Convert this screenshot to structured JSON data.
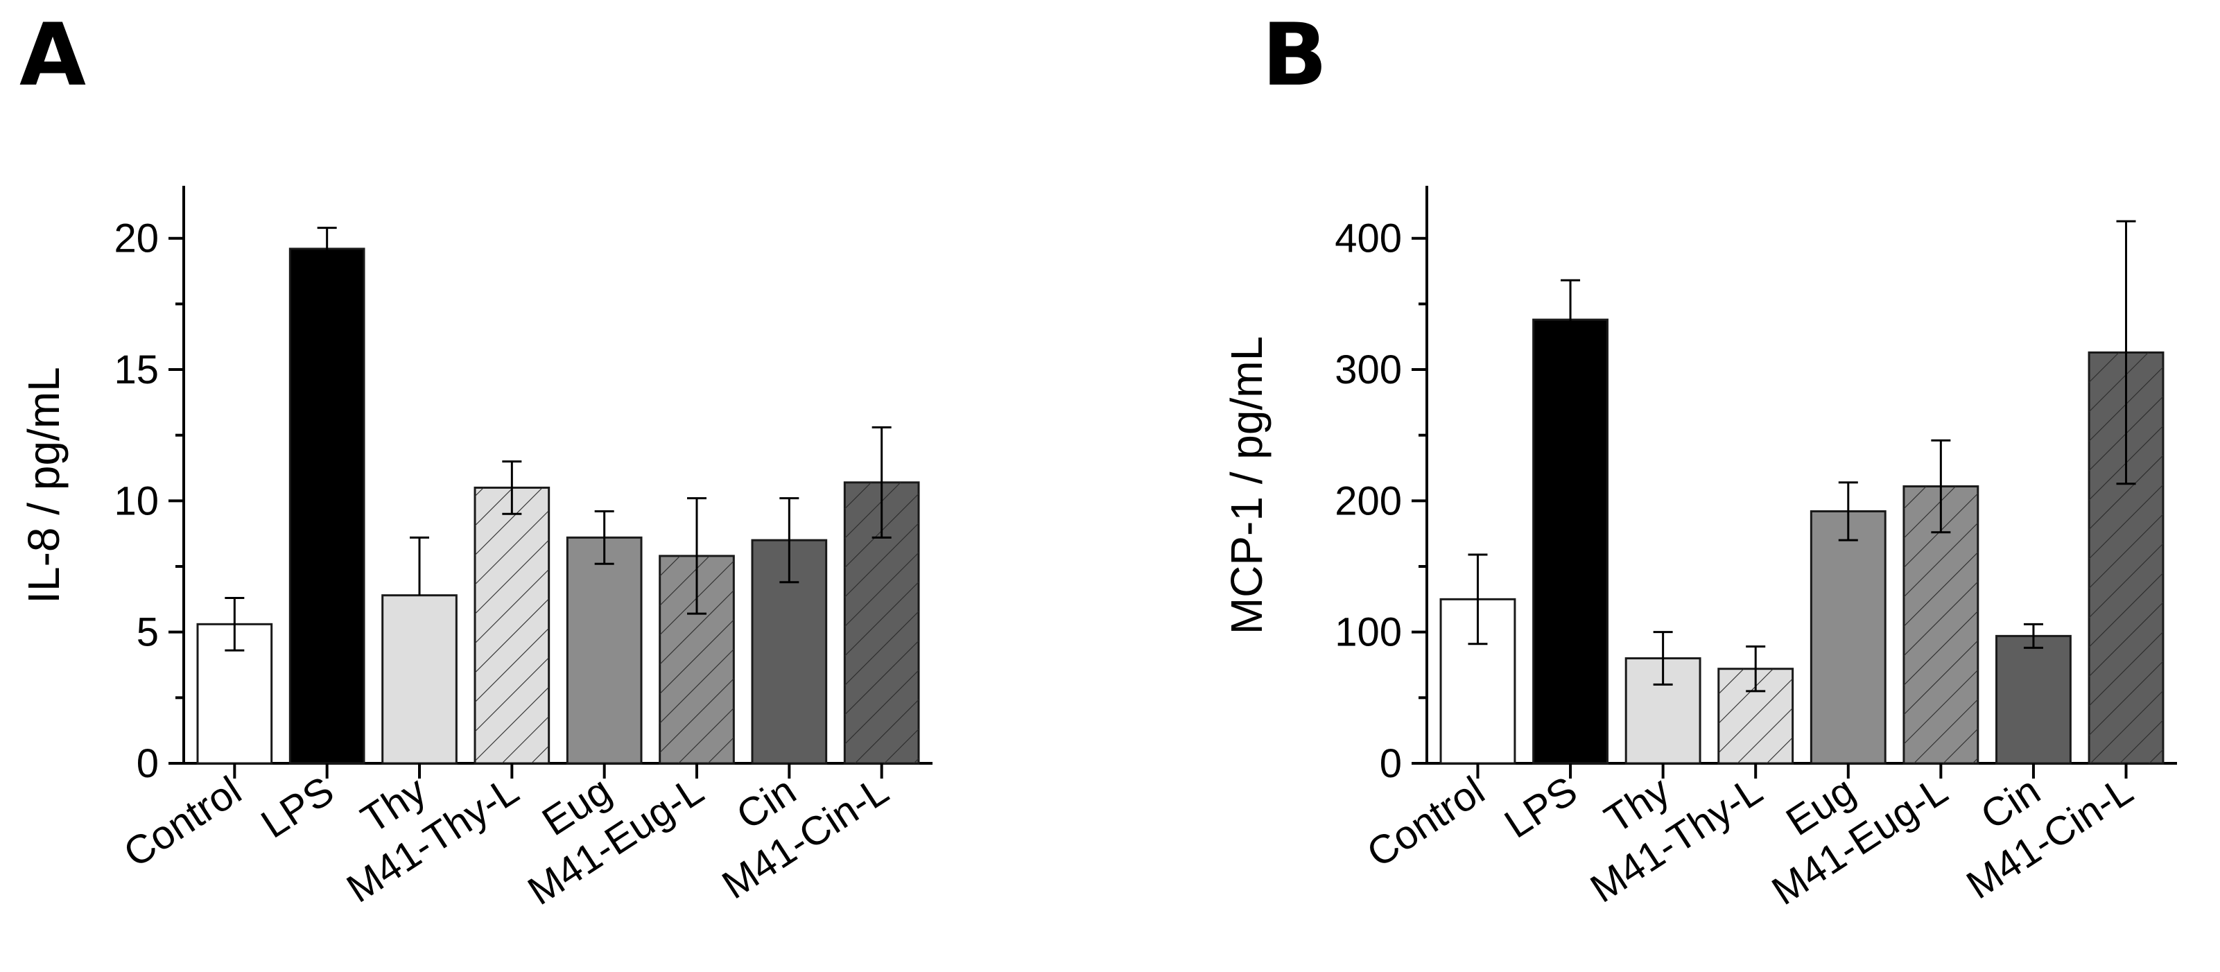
{
  "chart_data": [
    {
      "panel": "A",
      "type": "bar",
      "title": "",
      "xlabel": "",
      "ylabel": "IL-8 / pg/mL",
      "ylim": [
        0,
        22
      ],
      "yticks": [
        0,
        5,
        10,
        15,
        20
      ],
      "ytick_labels": [
        "0",
        "5",
        "10",
        "15",
        "20"
      ],
      "categories": [
        "Control",
        "LPS",
        "Thy",
        "M41-Thy-L",
        "Eug",
        "M41-Eug-L",
        "Cin",
        "M41-Cin-L"
      ],
      "values": [
        5.3,
        19.6,
        6.4,
        10.5,
        8.6,
        7.9,
        8.5,
        10.7
      ],
      "errors_upper": [
        1.0,
        0.8,
        2.2,
        1.0,
        1.0,
        2.2,
        1.6,
        2.1
      ],
      "errors_lower": [
        1.0,
        0.8,
        0,
        1.0,
        1.0,
        2.2,
        1.6,
        2.1
      ],
      "fills": [
        "#ffffff",
        "#000000",
        "#dedede",
        "#dedede",
        "#8c8c8c",
        "#8c8c8c",
        "#5e5e5e",
        "#5e5e5e"
      ],
      "hatched": [
        false,
        false,
        false,
        true,
        false,
        true,
        false,
        true
      ]
    },
    {
      "panel": "B",
      "type": "bar",
      "title": "",
      "xlabel": "",
      "ylabel": "MCP-1 / pg/mL",
      "ylim": [
        0,
        440
      ],
      "yticks": [
        0,
        100,
        200,
        300,
        400
      ],
      "ytick_labels": [
        "0",
        "100",
        "200",
        "300",
        "400"
      ],
      "categories": [
        "Control",
        "LPS",
        "Thy",
        "M41-Thy-L",
        "Eug",
        "M41-Eug-L",
        "Cin",
        "M41-Cin-L"
      ],
      "values": [
        125,
        338,
        80,
        72,
        192,
        211,
        97,
        313
      ],
      "errors_upper": [
        34,
        30,
        20,
        17,
        22,
        35,
        9,
        100
      ],
      "errors_lower": [
        34,
        30,
        20,
        17,
        22,
        35,
        9,
        100
      ],
      "fills": [
        "#ffffff",
        "#000000",
        "#dedede",
        "#dedede",
        "#8c8c8c",
        "#8c8c8c",
        "#5e5e5e",
        "#5e5e5e"
      ],
      "hatched": [
        false,
        false,
        false,
        true,
        false,
        true,
        false,
        true
      ]
    }
  ]
}
